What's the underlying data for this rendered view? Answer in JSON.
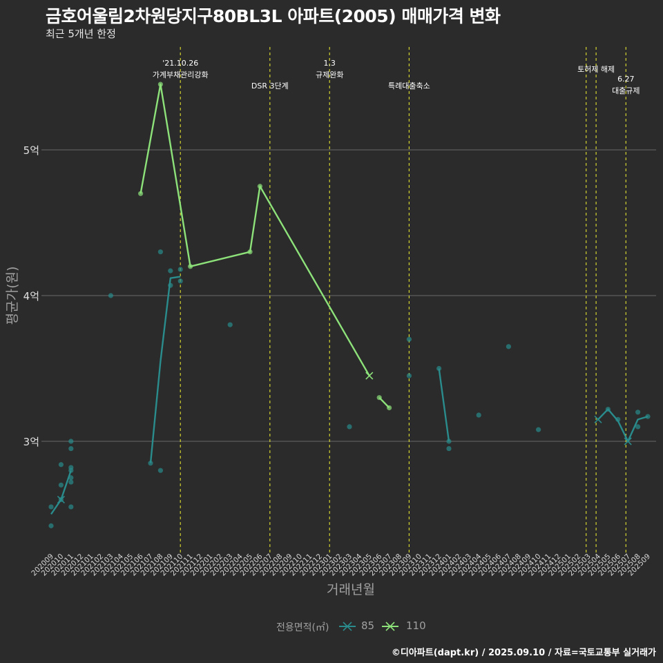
{
  "header": {
    "title": "금호어울림2차원당지구80BL3L 아파트(2005) 매매가격 변화",
    "subtitle": "최근 5개년 한정"
  },
  "footer": {
    "caption": "©디아파트(dapt.kr) / 2025.09.10 / 자료=국토교통부 실거래가"
  },
  "colors": {
    "background": "#2b2b2b",
    "series_85": "#2a8c8c",
    "series_110": "#8de27a",
    "vline": "#d4d430",
    "grid": "#6a6a6a",
    "text_muted": "#a0a0a0"
  },
  "chart_data": {
    "type": "line",
    "xlabel": "거래년월",
    "ylabel": "평균가(원)",
    "ylim": [
      2.35,
      5.8
    ],
    "y_unit": "억",
    "yticks": [
      {
        "value": 3,
        "label": "3억"
      },
      {
        "value": 4,
        "label": "4억"
      },
      {
        "value": 5,
        "label": "5억"
      }
    ],
    "x_categories": [
      "202009",
      "202010",
      "202011",
      "202012",
      "202101",
      "202102",
      "202103",
      "202104",
      "202105",
      "202106",
      "202107",
      "202108",
      "202109",
      "202110",
      "202111",
      "202112",
      "202201",
      "202202",
      "202203",
      "202204",
      "202205",
      "202206",
      "202207",
      "202208",
      "202209",
      "202210",
      "202211",
      "202212",
      "202301",
      "202302",
      "202303",
      "202304",
      "202305",
      "202306",
      "202307",
      "202308",
      "202309",
      "202310",
      "202311",
      "202312",
      "202401",
      "202402",
      "202403",
      "202404",
      "202405",
      "202406",
      "202407",
      "202408",
      "202409",
      "202410",
      "202411",
      "202412",
      "202501",
      "202502",
      "202503",
      "202504",
      "202505",
      "202506",
      "202507",
      "202508",
      "202509"
    ],
    "legend": {
      "title": "전용면적(㎡)",
      "position": "bottom",
      "items": [
        "85",
        "110"
      ]
    },
    "events": [
      {
        "x": 13,
        "label": "'21.10.26\n가계부채관리강화"
      },
      {
        "x": 22,
        "label": "DSR 3단계"
      },
      {
        "x": 28,
        "label": "1.3\n규제완화"
      },
      {
        "x": 36,
        "label": "특례대출축소"
      },
      {
        "x": 53.8,
        "label": ""
      },
      {
        "x": 54.8,
        "label": "토허제 해제"
      },
      {
        "x": 57.8,
        "label": "6.27\n대출규제"
      }
    ],
    "series": [
      {
        "name": "85",
        "line": [
          [
            0,
            2.5
          ],
          [
            1,
            2.6
          ],
          [
            2,
            2.8
          ],
          null,
          [
            10,
            2.85
          ],
          [
            11,
            3.55
          ],
          [
            12,
            4.12
          ],
          [
            13,
            4.13
          ],
          null,
          [
            39,
            3.5
          ],
          [
            40,
            3.0
          ],
          null,
          [
            55,
            3.15
          ],
          [
            56,
            3.22
          ],
          [
            57,
            3.14
          ],
          [
            58,
            3.0
          ],
          [
            59,
            3.15
          ],
          [
            60,
            3.17
          ]
        ],
        "points": [
          [
            0,
            2.42
          ],
          [
            0,
            2.55
          ],
          [
            1,
            2.6
          ],
          [
            1,
            2.7
          ],
          [
            1,
            2.84
          ],
          [
            2,
            2.55
          ],
          [
            2,
            2.72
          ],
          [
            2,
            2.75
          ],
          [
            2,
            2.8
          ],
          [
            2,
            2.82
          ],
          [
            2,
            2.95
          ],
          [
            2,
            3.0
          ],
          [
            6,
            4.0
          ],
          [
            10,
            2.85
          ],
          [
            11,
            2.8
          ],
          [
            11,
            4.3
          ],
          [
            12,
            4.07
          ],
          [
            12,
            4.17
          ],
          [
            13,
            4.1
          ],
          [
            13,
            4.18
          ],
          [
            18,
            3.8
          ],
          [
            30,
            3.1
          ],
          [
            36,
            3.45
          ],
          [
            36,
            3.7
          ],
          [
            39,
            3.5
          ],
          [
            40,
            2.95
          ],
          [
            40,
            3.0
          ],
          [
            43,
            3.18
          ],
          [
            46,
            3.65
          ],
          [
            49,
            3.08
          ],
          [
            56,
            3.22
          ],
          [
            57,
            3.15
          ],
          [
            59,
            3.1
          ],
          [
            59,
            3.2
          ],
          [
            60,
            3.17
          ]
        ],
        "crosses": [
          [
            1,
            2.6
          ],
          [
            55,
            3.15
          ],
          [
            58,
            3.0
          ]
        ]
      },
      {
        "name": "110",
        "line": [
          [
            9,
            4.7
          ],
          [
            11,
            5.45
          ],
          [
            14,
            4.2
          ],
          [
            20,
            4.3
          ],
          [
            21,
            4.75
          ],
          [
            32,
            3.45
          ],
          null,
          [
            33,
            3.3
          ],
          [
            34,
            3.23
          ]
        ],
        "points": [
          [
            9,
            4.7
          ],
          [
            11,
            5.45
          ],
          [
            14,
            4.2
          ],
          [
            20,
            4.3
          ],
          [
            21,
            4.75
          ],
          [
            33,
            3.3
          ],
          [
            34,
            3.23
          ]
        ],
        "crosses": [
          [
            32,
            3.45
          ]
        ]
      }
    ]
  }
}
